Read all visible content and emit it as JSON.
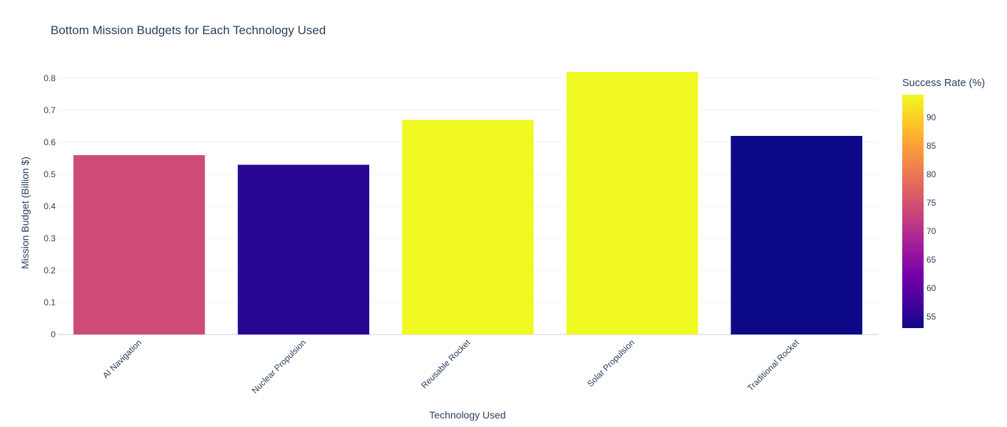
{
  "chart_data": {
    "type": "bar",
    "title": "Bottom Mission Budgets for Each Technology Used",
    "xlabel": "Technology Used",
    "ylabel": "Mission Budget (Billion $)",
    "categories": [
      "AI Navigation",
      "Nuclear Propulsion",
      "Reusable Rocket",
      "Solar Propulsion",
      "Traditional Rocket"
    ],
    "values": [
      0.56,
      0.53,
      0.67,
      0.82,
      0.62
    ],
    "color_values": [
      74,
      55,
      94,
      94,
      53
    ],
    "ylim": [
      0,
      0.86
    ],
    "yticks": [
      "0",
      "0.1",
      "0.2",
      "0.3",
      "0.4",
      "0.5",
      "0.6",
      "0.7",
      "0.8"
    ],
    "colorbar": {
      "title": "Success Rate (%)",
      "range": [
        53,
        94
      ],
      "ticks": [
        "55",
        "60",
        "65",
        "70",
        "75",
        "80",
        "85",
        "90"
      ],
      "colorscale": [
        "#0d0887",
        "#46039f",
        "#7201a8",
        "#9c179e",
        "#bd3786",
        "#d8576b",
        "#ed7953",
        "#fb9f3a",
        "#fdca26",
        "#f0f921"
      ]
    },
    "grid": true,
    "legend": "none"
  }
}
